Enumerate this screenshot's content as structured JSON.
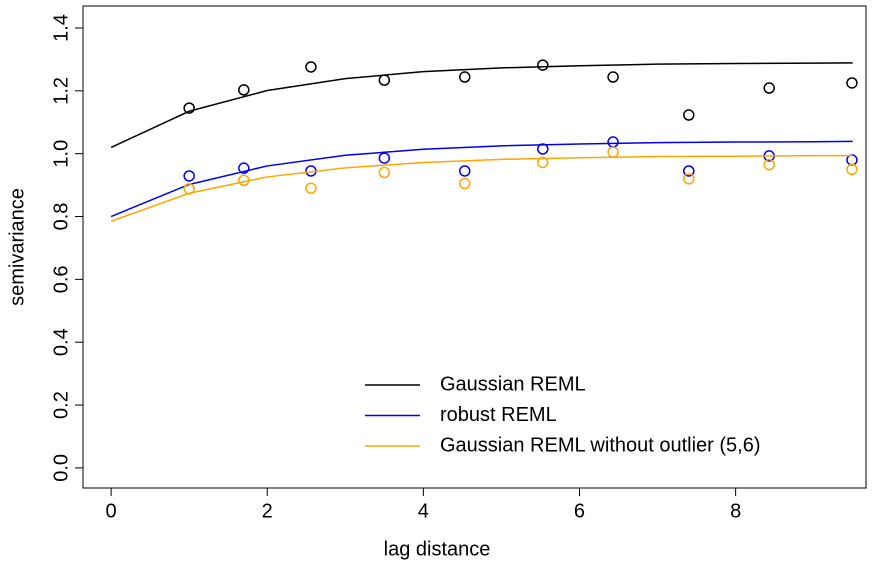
{
  "chart_data": {
    "type": "scatter",
    "x_label": "lag distance",
    "y_label": "semivariance",
    "xlim": [
      -0.36,
      9.67
    ],
    "ylim": [
      -0.064,
      1.47
    ],
    "xticks": [
      0,
      2,
      4,
      6,
      8
    ],
    "yticks": [
      {
        "value": 0,
        "label": "0.0"
      },
      0.2,
      0.4,
      0.6,
      0.8,
      {
        "value": 1,
        "label": "1.0"
      },
      1.2,
      1.4
    ],
    "legend": "bottom-right",
    "x": [
      1.0,
      1.7,
      2.56,
      3.5,
      4.53,
      5.53,
      6.43,
      7.4,
      8.43,
      9.49
    ],
    "fit_x": [
      0,
      1,
      2,
      3,
      4,
      5,
      6,
      7,
      8,
      9,
      9.5
    ],
    "series": [
      {
        "name": "Gaussian REML",
        "color": "#000000",
        "values": [
          1.145,
          1.203,
          1.276,
          1.234,
          1.244,
          1.282,
          1.244,
          1.123,
          1.209,
          1.225
        ],
        "fit_values": [
          1.02,
          1.135,
          1.201,
          1.239,
          1.261,
          1.273,
          1.28,
          1.285,
          1.287,
          1.288,
          1.289
        ]
      },
      {
        "name": "robust REML",
        "color": "#0000ee",
        "values": [
          0.929,
          0.954,
          0.945,
          0.986,
          0.945,
          1.015,
          1.037,
          0.945,
          0.993,
          0.98
        ],
        "fit_values": [
          0.8,
          0.902,
          0.961,
          0.995,
          1.014,
          1.025,
          1.031,
          1.035,
          1.037,
          1.038,
          1.039
        ]
      },
      {
        "name": "Gaussian REML without outlier (5,6)",
        "color": "#ffa500",
        "values": [
          0.888,
          0.915,
          0.89,
          0.94,
          0.905,
          0.972,
          1.005,
          0.92,
          0.965,
          0.95
        ],
        "fit_values": [
          0.785,
          0.874,
          0.926,
          0.955,
          0.972,
          0.982,
          0.987,
          0.991,
          0.992,
          0.994,
          0.994
        ]
      }
    ]
  }
}
